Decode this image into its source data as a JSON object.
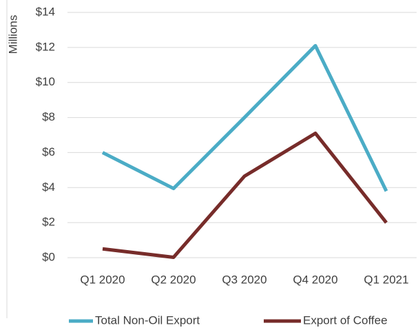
{
  "chart_data": {
    "type": "line",
    "y_axis_label": "Millions",
    "categories": [
      "Q1 2020",
      "Q2 2020",
      "Q3 2020",
      "Q4 2020",
      "Q1 2021"
    ],
    "series": [
      {
        "name": "Total Non-Oil Export",
        "color": "#4bacc6",
        "values": [
          6.0,
          3.95,
          8.0,
          12.1,
          3.8
        ]
      },
      {
        "name": "Export of Coffee",
        "color": "#772c2a",
        "values": [
          0.5,
          0.02,
          4.65,
          7.1,
          2.0
        ]
      }
    ],
    "ylim": [
      0,
      14
    ],
    "yticks": [
      {
        "value": 0,
        "label": "$0"
      },
      {
        "value": 2,
        "label": "$2"
      },
      {
        "value": 4,
        "label": "$4"
      },
      {
        "value": 6,
        "label": "$6"
      },
      {
        "value": 8,
        "label": "$8"
      },
      {
        "value": 10,
        "label": "$10"
      },
      {
        "value": 12,
        "label": "$12"
      },
      {
        "value": 14,
        "label": "$14"
      }
    ],
    "grid": true,
    "legend": "bottom"
  }
}
